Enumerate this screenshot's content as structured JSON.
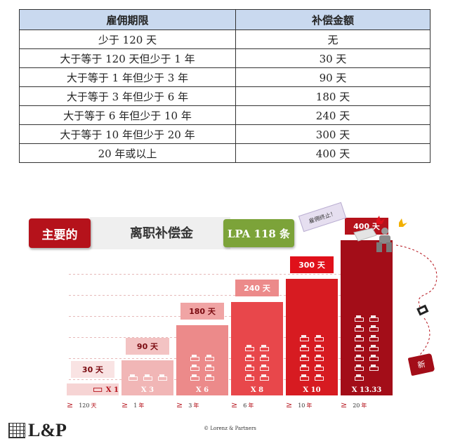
{
  "table": {
    "headers": [
      "雇佣期限",
      "补偿金额"
    ],
    "rows": [
      [
        "少于 120 天",
        "无"
      ],
      [
        "大于等于 120 天但少于 1 年",
        "30 天"
      ],
      [
        "大于等于 1 年但少于 3 年",
        "90 天"
      ],
      [
        "大于等于 3 年但少于 6 年",
        "180 天"
      ],
      [
        "大于等于 6 年但少于 10 年",
        "240 天"
      ],
      [
        "大于等于 10 年但少于 20 年",
        "300 天"
      ],
      [
        "20 年或以上",
        "400 天"
      ]
    ]
  },
  "banner": {
    "main_label": "主要的",
    "title": "离职补偿金",
    "law_label": "LPA 118 条"
  },
  "chart": {
    "bars": [
      {
        "days": "30 天",
        "multiplier": "X 1",
        "threshold_num": "120",
        "threshold_unit": "天",
        "icons": 1,
        "level": 1
      },
      {
        "days": "90 天",
        "multiplier": "X 3",
        "threshold_num": "1",
        "threshold_unit": "年",
        "icons": 3,
        "level": 3
      },
      {
        "days": "180 天",
        "multiplier": "X 6",
        "threshold_num": "3",
        "threshold_unit": "年",
        "icons": 6,
        "level": 6
      },
      {
        "days": "240 天",
        "multiplier": "X 8",
        "threshold_num": "6",
        "threshold_unit": "年",
        "icons": 8,
        "level": 8
      },
      {
        "days": "300 天",
        "multiplier": "X 10",
        "threshold_num": "10",
        "threshold_unit": "年",
        "icons": 10,
        "level": 10
      },
      {
        "days": "400 天",
        "multiplier": "X 13.33",
        "threshold_num": "20",
        "threshold_unit": "年",
        "icons": 13,
        "level": 13.33
      }
    ],
    "ge_symbol": "≥",
    "colors": [
      "#f6d4d4",
      "#f1b6b6",
      "#ec8a8a",
      "#e8474b",
      "#d71b21",
      "#a30d18"
    ],
    "box_colors": [
      "#f9e3e3",
      "#f3c3c3",
      "#f0a4a4",
      "#ec8a8a",
      "#e0101a",
      "#b5121b"
    ]
  },
  "decor": {
    "note_text": "雇佣终止！",
    "tag_text": "新"
  },
  "footer": {
    "copyright": "© Lorenz & Partners",
    "logo_text": "L&P"
  }
}
